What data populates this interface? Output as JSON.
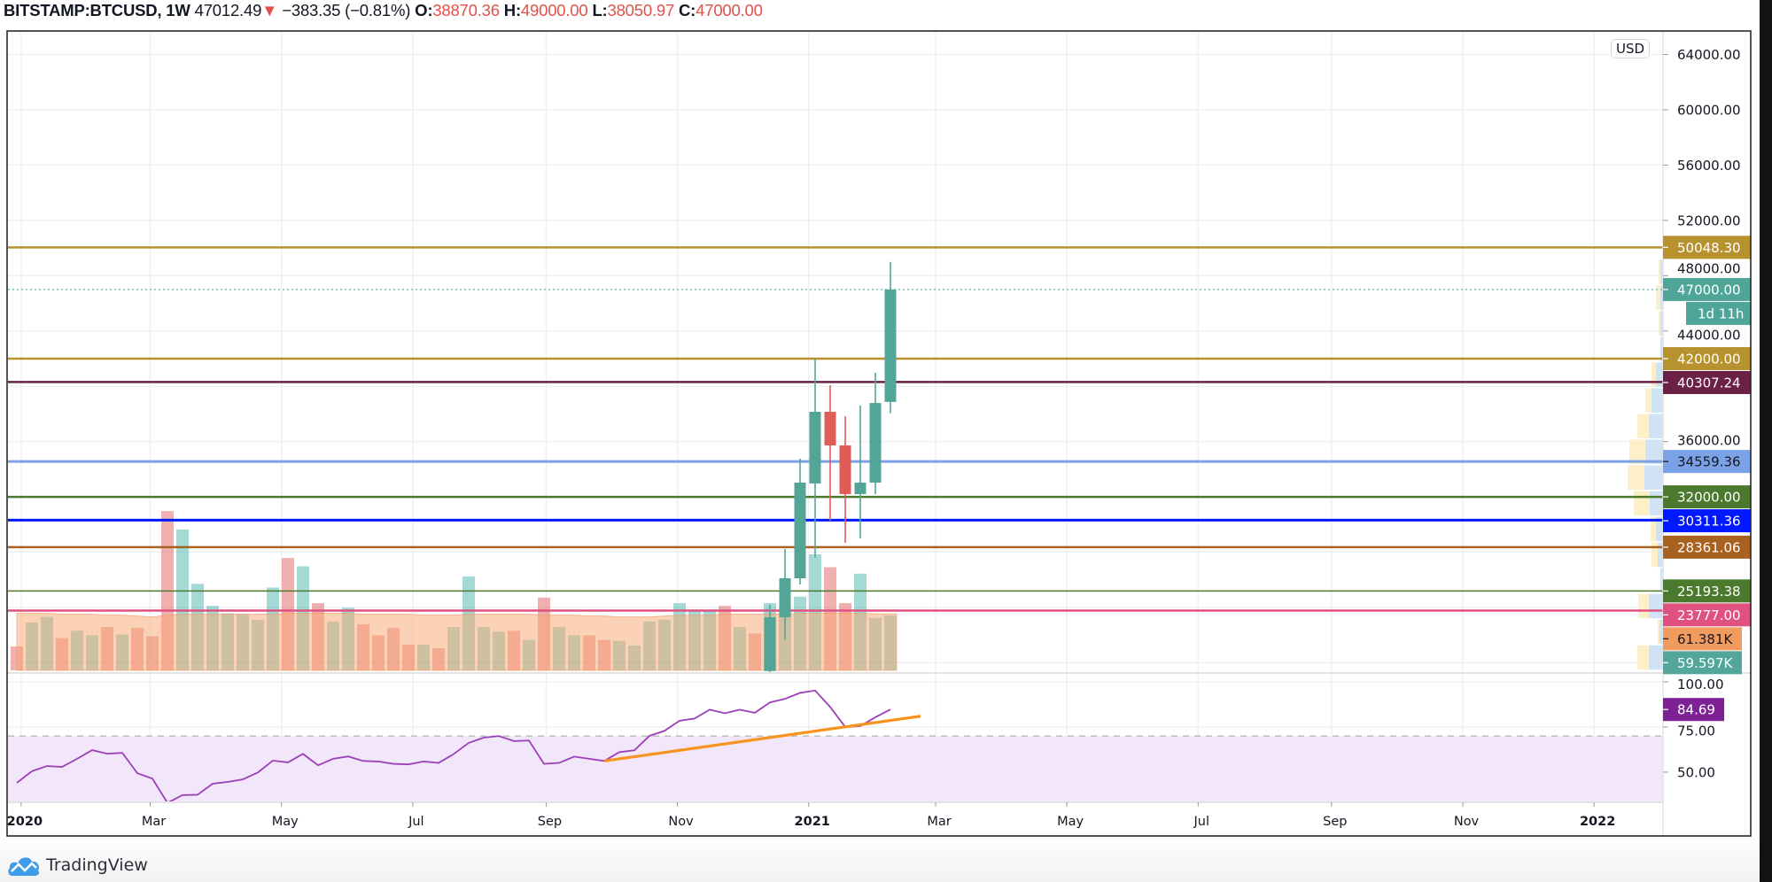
{
  "header": {
    "symbol": "BITSTAMP:BTCUSD, 1W",
    "last": "47012.49",
    "direction_icon": "triangle-down-icon",
    "change": "−383.35 (−0.81%)",
    "o_label": "O:",
    "o": "38870.36",
    "h_label": "H:",
    "h": "49000.00",
    "l_label": "L:",
    "l": "38050.97",
    "c_label": "C:",
    "c": "47000.00"
  },
  "currency_badge": "USD",
  "footer": {
    "brand": "TradingView",
    "brand_icon": "tradingview-cloud-icon"
  },
  "colors": {
    "up": "#53a598",
    "down": "#e05c56",
    "volume_up": "rgba(38,166,154,0.42)",
    "volume_down": "rgba(225,80,80,0.45)",
    "volume_ma": "rgba(247,165,110,0.5)",
    "rsi_line": "#9c3fb8",
    "rsi_band": "#f2e6fb",
    "rsi_trendline": "#f7941d",
    "profile_up": "#cfe3f5",
    "profile_down": "#fdf0c8",
    "grid": "#f0f0f3"
  },
  "chart_data": {
    "type": "candlestick",
    "interval": "1W",
    "ylim": [
      19257,
      65700
    ],
    "price_ticks": [
      "64000.00",
      "60000.00",
      "56000.00",
      "52000.00",
      "48000.00",
      "44000.00",
      "36000.00"
    ],
    "time_ticks": [
      {
        "date": "2020-01-01",
        "label": "2020",
        "bold": true
      },
      {
        "date": "2020-03-01",
        "label": "Mar"
      },
      {
        "date": "2020-05-01",
        "label": "May"
      },
      {
        "date": "2020-07-01",
        "label": "Jul"
      },
      {
        "date": "2020-09-01",
        "label": "Sep"
      },
      {
        "date": "2020-11-01",
        "label": "Nov"
      },
      {
        "date": "2021-01-01",
        "label": "2021",
        "bold": true
      },
      {
        "date": "2021-03-01",
        "label": "Mar"
      },
      {
        "date": "2021-05-01",
        "label": "May"
      },
      {
        "date": "2021-07-01",
        "label": "Jul"
      },
      {
        "date": "2021-09-01",
        "label": "Sep"
      },
      {
        "date": "2021-11-01",
        "label": "Nov"
      },
      {
        "date": "2022-01-01",
        "label": "2022",
        "bold": true
      }
    ],
    "candles": [
      {
        "date": "2020-12-14",
        "o": 19400,
        "h": 24190,
        "l": 19250,
        "c": 23290
      },
      {
        "date": "2020-12-21",
        "o": 23290,
        "h": 28230,
        "l": 21630,
        "c": 26110
      },
      {
        "date": "2020-12-28",
        "o": 26110,
        "h": 34760,
        "l": 25660,
        "c": 33030
      },
      {
        "date": "2021-01-04",
        "o": 32970,
        "h": 42000,
        "l": 27590,
        "c": 38150
      },
      {
        "date": "2021-01-11",
        "o": 38150,
        "h": 40080,
        "l": 30280,
        "c": 35720
      },
      {
        "date": "2021-01-18",
        "o": 35720,
        "h": 37830,
        "l": 28670,
        "c": 32200
      },
      {
        "date": "2021-01-25",
        "o": 32200,
        "h": 38600,
        "l": 29000,
        "c": 33030
      },
      {
        "date": "2021-02-01",
        "o": 33030,
        "h": 40970,
        "l": 32200,
        "c": 38790
      },
      {
        "date": "2021-02-08",
        "o": 38870.36,
        "h": 49000,
        "l": 38050.97,
        "c": 47000
      }
    ],
    "weeks": [
      {
        "date": "2019-12-30",
        "volume": 26,
        "dir": "down",
        "rsi": 44.1,
        "vol_ma": 62
      },
      {
        "date": "2020-01-06",
        "volume": 52,
        "dir": "up",
        "rsi": 50.5,
        "vol_ma": 62
      },
      {
        "date": "2020-01-13",
        "volume": 58,
        "dir": "up",
        "rsi": 53.4,
        "vol_ma": 62
      },
      {
        "date": "2020-01-20",
        "volume": 35,
        "dir": "down",
        "rsi": 52.9,
        "vol_ma": 61
      },
      {
        "date": "2020-01-27",
        "volume": 43,
        "dir": "up",
        "rsi": 57.4,
        "vol_ma": 61
      },
      {
        "date": "2020-02-03",
        "volume": 38,
        "dir": "up",
        "rsi": 62.2,
        "vol_ma": 61
      },
      {
        "date": "2020-02-10",
        "volume": 47,
        "dir": "down",
        "rsi": 60.2,
        "vol_ma": 60
      },
      {
        "date": "2020-02-17",
        "volume": 39,
        "dir": "up",
        "rsi": 60.7,
        "vol_ma": 60
      },
      {
        "date": "2020-02-24",
        "volume": 46,
        "dir": "down",
        "rsi": 49.4,
        "vol_ma": 59
      },
      {
        "date": "2020-03-02",
        "volume": 37,
        "dir": "down",
        "rsi": 46.4,
        "vol_ma": 58
      },
      {
        "date": "2020-03-09",
        "volume": 173,
        "dir": "down",
        "rsi": 33.0,
        "vol_ma": 60
      },
      {
        "date": "2020-03-16",
        "volume": 153,
        "dir": "up",
        "rsi": 37.3,
        "vol_ma": 61
      },
      {
        "date": "2020-03-23",
        "volume": 94,
        "dir": "up",
        "rsi": 37.5,
        "vol_ma": 61
      },
      {
        "date": "2020-03-30",
        "volume": 70,
        "dir": "up",
        "rsi": 43.6,
        "vol_ma": 61
      },
      {
        "date": "2020-04-06",
        "volume": 62,
        "dir": "up",
        "rsi": 44.6,
        "vol_ma": 61
      },
      {
        "date": "2020-04-13",
        "volume": 61,
        "dir": "up",
        "rsi": 46.0,
        "vol_ma": 61
      },
      {
        "date": "2020-04-20",
        "volume": 55,
        "dir": "up",
        "rsi": 49.8,
        "vol_ma": 61
      },
      {
        "date": "2020-04-27",
        "volume": 90,
        "dir": "up",
        "rsi": 56.4,
        "vol_ma": 61
      },
      {
        "date": "2020-05-04",
        "volume": 122,
        "dir": "down",
        "rsi": 55.4,
        "vol_ma": 62
      },
      {
        "date": "2020-05-11",
        "volume": 113,
        "dir": "up",
        "rsi": 60.1,
        "vol_ma": 62
      },
      {
        "date": "2020-05-18",
        "volume": 73,
        "dir": "down",
        "rsi": 53.8,
        "vol_ma": 62
      },
      {
        "date": "2020-05-25",
        "volume": 53,
        "dir": "up",
        "rsi": 57.4,
        "vol_ma": 62
      },
      {
        "date": "2020-06-01",
        "volume": 68,
        "dir": "up",
        "rsi": 58.7,
        "vol_ma": 62
      },
      {
        "date": "2020-06-08",
        "volume": 50,
        "dir": "down",
        "rsi": 56.2,
        "vol_ma": 61
      },
      {
        "date": "2020-06-15",
        "volume": 38,
        "dir": "down",
        "rsi": 55.9,
        "vol_ma": 61
      },
      {
        "date": "2020-06-22",
        "volume": 46,
        "dir": "down",
        "rsi": 54.6,
        "vol_ma": 61
      },
      {
        "date": "2020-06-29",
        "volume": 28,
        "dir": "down",
        "rsi": 54.3,
        "vol_ma": 61
      },
      {
        "date": "2020-07-06",
        "volume": 28,
        "dir": "up",
        "rsi": 55.9,
        "vol_ma": 60
      },
      {
        "date": "2020-07-13",
        "volume": 24,
        "dir": "down",
        "rsi": 55.1,
        "vol_ma": 60
      },
      {
        "date": "2020-07-20",
        "volume": 47,
        "dir": "up",
        "rsi": 60.0,
        "vol_ma": 60
      },
      {
        "date": "2020-07-27",
        "volume": 102,
        "dir": "up",
        "rsi": 66.2,
        "vol_ma": 61
      },
      {
        "date": "2020-08-03",
        "volume": 47,
        "dir": "up",
        "rsi": 69.1,
        "vol_ma": 61
      },
      {
        "date": "2020-08-10",
        "volume": 42,
        "dir": "up",
        "rsi": 70.0,
        "vol_ma": 61
      },
      {
        "date": "2020-08-17",
        "volume": 43,
        "dir": "down",
        "rsi": 67.2,
        "vol_ma": 61
      },
      {
        "date": "2020-08-24",
        "volume": 33,
        "dir": "up",
        "rsi": 67.5,
        "vol_ma": 61
      },
      {
        "date": "2020-08-31",
        "volume": 79,
        "dir": "down",
        "rsi": 54.6,
        "vol_ma": 60
      },
      {
        "date": "2020-09-07",
        "volume": 47,
        "dir": "up",
        "rsi": 55.1,
        "vol_ma": 60
      },
      {
        "date": "2020-09-14",
        "volume": 38,
        "dir": "up",
        "rsi": 58.6,
        "vol_ma": 60
      },
      {
        "date": "2020-09-21",
        "volume": 38,
        "dir": "down",
        "rsi": 57.4,
        "vol_ma": 59
      },
      {
        "date": "2020-09-28",
        "volume": 33,
        "dir": "down",
        "rsi": 56.2,
        "vol_ma": 59
      },
      {
        "date": "2020-10-05",
        "volume": 32,
        "dir": "up",
        "rsi": 61.1,
        "vol_ma": 58
      },
      {
        "date": "2020-10-12",
        "volume": 27,
        "dir": "up",
        "rsi": 62.1,
        "vol_ma": 58
      },
      {
        "date": "2020-10-19",
        "volume": 53,
        "dir": "up",
        "rsi": 70.1,
        "vol_ma": 58
      },
      {
        "date": "2020-10-26",
        "volume": 55,
        "dir": "up",
        "rsi": 72.9,
        "vol_ma": 59
      },
      {
        "date": "2020-11-02",
        "volume": 73,
        "dir": "up",
        "rsi": 78.5,
        "vol_ma": 60
      },
      {
        "date": "2020-11-09",
        "volume": 66,
        "dir": "up",
        "rsi": 79.7,
        "vol_ma": 60
      },
      {
        "date": "2020-11-16",
        "volume": 65,
        "dir": "up",
        "rsi": 84.6,
        "vol_ma": 60
      },
      {
        "date": "2020-11-23",
        "volume": 70,
        "dir": "down",
        "rsi": 82.6,
        "vol_ma": 61
      },
      {
        "date": "2020-11-30",
        "volume": 47,
        "dir": "up",
        "rsi": 84.6,
        "vol_ma": 61
      },
      {
        "date": "2020-12-07",
        "volume": 40,
        "dir": "down",
        "rsi": 82.9,
        "vol_ma": 61
      },
      {
        "date": "2020-12-14",
        "volume": 73,
        "dir": "up",
        "rsi": 88.6,
        "vol_ma": 61
      },
      {
        "date": "2020-12-21",
        "volume": 67,
        "dir": "up",
        "rsi": 90.6,
        "vol_ma": 61
      },
      {
        "date": "2020-12-28",
        "volume": 80,
        "dir": "up",
        "rsi": 93.9,
        "vol_ma": 62
      },
      {
        "date": "2021-01-04",
        "volume": 126,
        "dir": "up",
        "rsi": 95.2,
        "vol_ma": 62
      },
      {
        "date": "2021-01-11",
        "volume": 112,
        "dir": "down",
        "rsi": 86.1,
        "vol_ma": 62
      },
      {
        "date": "2021-01-18",
        "volume": 73,
        "dir": "down",
        "rsi": 75.0,
        "vol_ma": 62
      },
      {
        "date": "2021-01-25",
        "volume": 105,
        "dir": "up",
        "rsi": 75.5,
        "vol_ma": 62
      },
      {
        "date": "2021-02-01",
        "volume": 57,
        "dir": "up",
        "rsi": 80.4,
        "vol_ma": 61.5
      },
      {
        "date": "2021-02-08",
        "volume": 59.597,
        "dir": "up",
        "rsi": 84.69,
        "vol_ma": 61.381
      }
    ],
    "levels": [
      {
        "price": 50048.3,
        "label": "50048.30",
        "color": "#b8922e",
        "text_color": "#ffffff",
        "width": 2.5
      },
      {
        "price": 42000.0,
        "label": "42000.00",
        "color": "#b8922e",
        "text_color": "#ffffff",
        "width": 2.5
      },
      {
        "price": 40307.24,
        "label": "40307.24",
        "color": "#6b2045",
        "text_color": "#ffffff",
        "width": 2.5
      },
      {
        "price": 34559.36,
        "label": "34559.36",
        "color": "#7ba1e6",
        "text_color": "#131722",
        "width": 3
      },
      {
        "price": 32000.0,
        "label": "32000.00",
        "color": "#4b7a2e",
        "text_color": "#ffffff",
        "width": 2.5
      },
      {
        "price": 30311.36,
        "label": "30311.36",
        "color": "#0019ff",
        "text_color": "#ffffff",
        "width": 3
      },
      {
        "price": 28361.06,
        "label": "28361.06",
        "color": "#a8611f",
        "text_color": "#ffffff",
        "width": 2.5
      },
      {
        "price": 25193.38,
        "label": "25193.38",
        "color": "#4b7a2e",
        "text_color": "#ffffff",
        "width": 1.5
      },
      {
        "price": 23777.0,
        "label": "23777.00",
        "color": "#df5280",
        "text_color": "#ffffff",
        "width": 2.5
      }
    ],
    "last_price": {
      "price": 47000.0,
      "label": "47000.00",
      "color": "#4fa597",
      "countdown": "1d 11h"
    },
    "volume_labels": [
      {
        "label": "61.381K",
        "value": 61.381,
        "color": "#f29b5f",
        "text_color": "#131722"
      },
      {
        "label": "59.597K",
        "value": 59.597,
        "color": "#52a69a",
        "text_color": "#ffffff"
      }
    ],
    "volume_profile": [
      {
        "from": 19400,
        "to": 21260,
        "up": 16,
        "down": 13
      },
      {
        "from": 21260,
        "to": 23120,
        "up": 4,
        "down": 2
      },
      {
        "from": 23120,
        "to": 24980,
        "up": 16,
        "down": 12
      },
      {
        "from": 24980,
        "to": 26840,
        "up": 3,
        "down": 0
      },
      {
        "from": 26840,
        "to": 28700,
        "up": 6,
        "down": 7
      },
      {
        "from": 28700,
        "to": 30560,
        "up": 8,
        "down": 6
      },
      {
        "from": 30560,
        "to": 32420,
        "up": 15,
        "down": 18
      },
      {
        "from": 32420,
        "to": 34280,
        "up": 21,
        "down": 19
      },
      {
        "from": 34280,
        "to": 36140,
        "up": 20,
        "down": 18
      },
      {
        "from": 36140,
        "to": 38000,
        "up": 16,
        "down": 13
      },
      {
        "from": 38000,
        "to": 39860,
        "up": 13,
        "down": 7
      },
      {
        "from": 39860,
        "to": 41720,
        "up": 8,
        "down": 5
      },
      {
        "from": 41720,
        "to": 43580,
        "up": 3,
        "down": 0
      },
      {
        "from": 43580,
        "to": 45440,
        "up": 3,
        "down": 2
      },
      {
        "from": 45440,
        "to": 47300,
        "up": 3,
        "down": 5
      },
      {
        "from": 47300,
        "to": 49160,
        "up": 3,
        "down": 2
      }
    ],
    "rsi": {
      "ylim": [
        33.3,
        104.9
      ],
      "ticks": [
        "100.00",
        "75.00",
        "50.00"
      ],
      "band": [
        30,
        70
      ],
      "last_label": "84.69",
      "last_color": "#7e2195",
      "trendline": [
        {
          "date": "2020-09-28",
          "value": 56.2
        },
        {
          "date": "2021-02-22",
          "value": 81.0
        }
      ]
    }
  }
}
